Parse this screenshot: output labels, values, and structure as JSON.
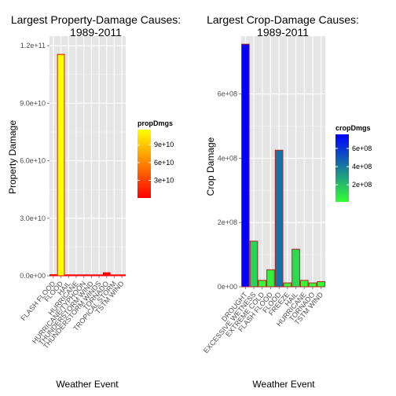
{
  "chart_data": [
    {
      "type": "bar",
      "title_lines": [
        "Largest Property-Damage Causes:",
        "1989-2011"
      ],
      "xlabel": "Weather Event",
      "ylabel": "Property Damage",
      "ylim": [
        0,
        125000000000
      ],
      "yticks": [
        0,
        30000000000,
        60000000000,
        90000000000,
        120000000000
      ],
      "ytick_labels": [
        "0.0e+00",
        "3.0e+10",
        "6.0e+10",
        "9.0e+10",
        "1.2e+11"
      ],
      "categories": [
        "FLASH FLOOD",
        "FLOOD",
        "HAIL",
        "HURRICANE",
        "HURRICANE/TYPHOON",
        "THUNDERSTORM WIND",
        "THUNDERSTORM WINDS",
        "TORNADO",
        "TROPICAL STORM",
        "TSTM WIND"
      ],
      "values": [
        600000000,
        115500000000,
        200000000,
        100000000,
        100000000,
        100000000,
        100000000,
        1600000000,
        100000000,
        100000000
      ],
      "bar_outline": "#ff0000",
      "grid": true,
      "panel_bg": "#e5e5e5",
      "legend": {
        "title": "propDmgs",
        "min": 100000000,
        "max": 115500000000,
        "color_low": "#ff0000",
        "color_high": "#ffff00",
        "ticks": [
          30000000000,
          60000000000,
          90000000000
        ],
        "tick_labels": [
          "3e+10",
          "6e+10",
          "9e+10"
        ],
        "position": "right"
      }
    },
    {
      "type": "bar",
      "title_lines": [
        "Largest Crop-Damage Causes:",
        "1989-2011"
      ],
      "xlabel": "Weather Event",
      "ylabel": "Crop Damage",
      "ylim": [
        0,
        780000000
      ],
      "yticks": [
        0,
        200000000,
        400000000,
        600000000
      ],
      "ytick_labels": [
        "0e+00",
        "2e+08",
        "4e+08",
        "6e+08"
      ],
      "categories": [
        "DROUGHT",
        "EXCESSIVE WETNESS",
        "EXTREME COLD",
        "FLASH FLOOD",
        "FLOOD",
        "FREEZE",
        "HAIL",
        "HURRICANE",
        "TORNADO",
        "TSTM WIND"
      ],
      "values": [
        755000000,
        142000000,
        20000000,
        53000000,
        425000000,
        12000000,
        117000000,
        20000000,
        12000000,
        16000000
      ],
      "bar_outline": "#b22222",
      "grid": true,
      "panel_bg": "#e5e5e5",
      "legend": {
        "title": "cropDmgs",
        "min": 12000000,
        "max": 755000000,
        "color_low": "#33ff33",
        "color_high": "#0000ff",
        "ticks": [
          200000000,
          400000000,
          600000000
        ],
        "tick_labels": [
          "2e+08",
          "4e+08",
          "6e+08"
        ],
        "position": "right"
      }
    }
  ]
}
